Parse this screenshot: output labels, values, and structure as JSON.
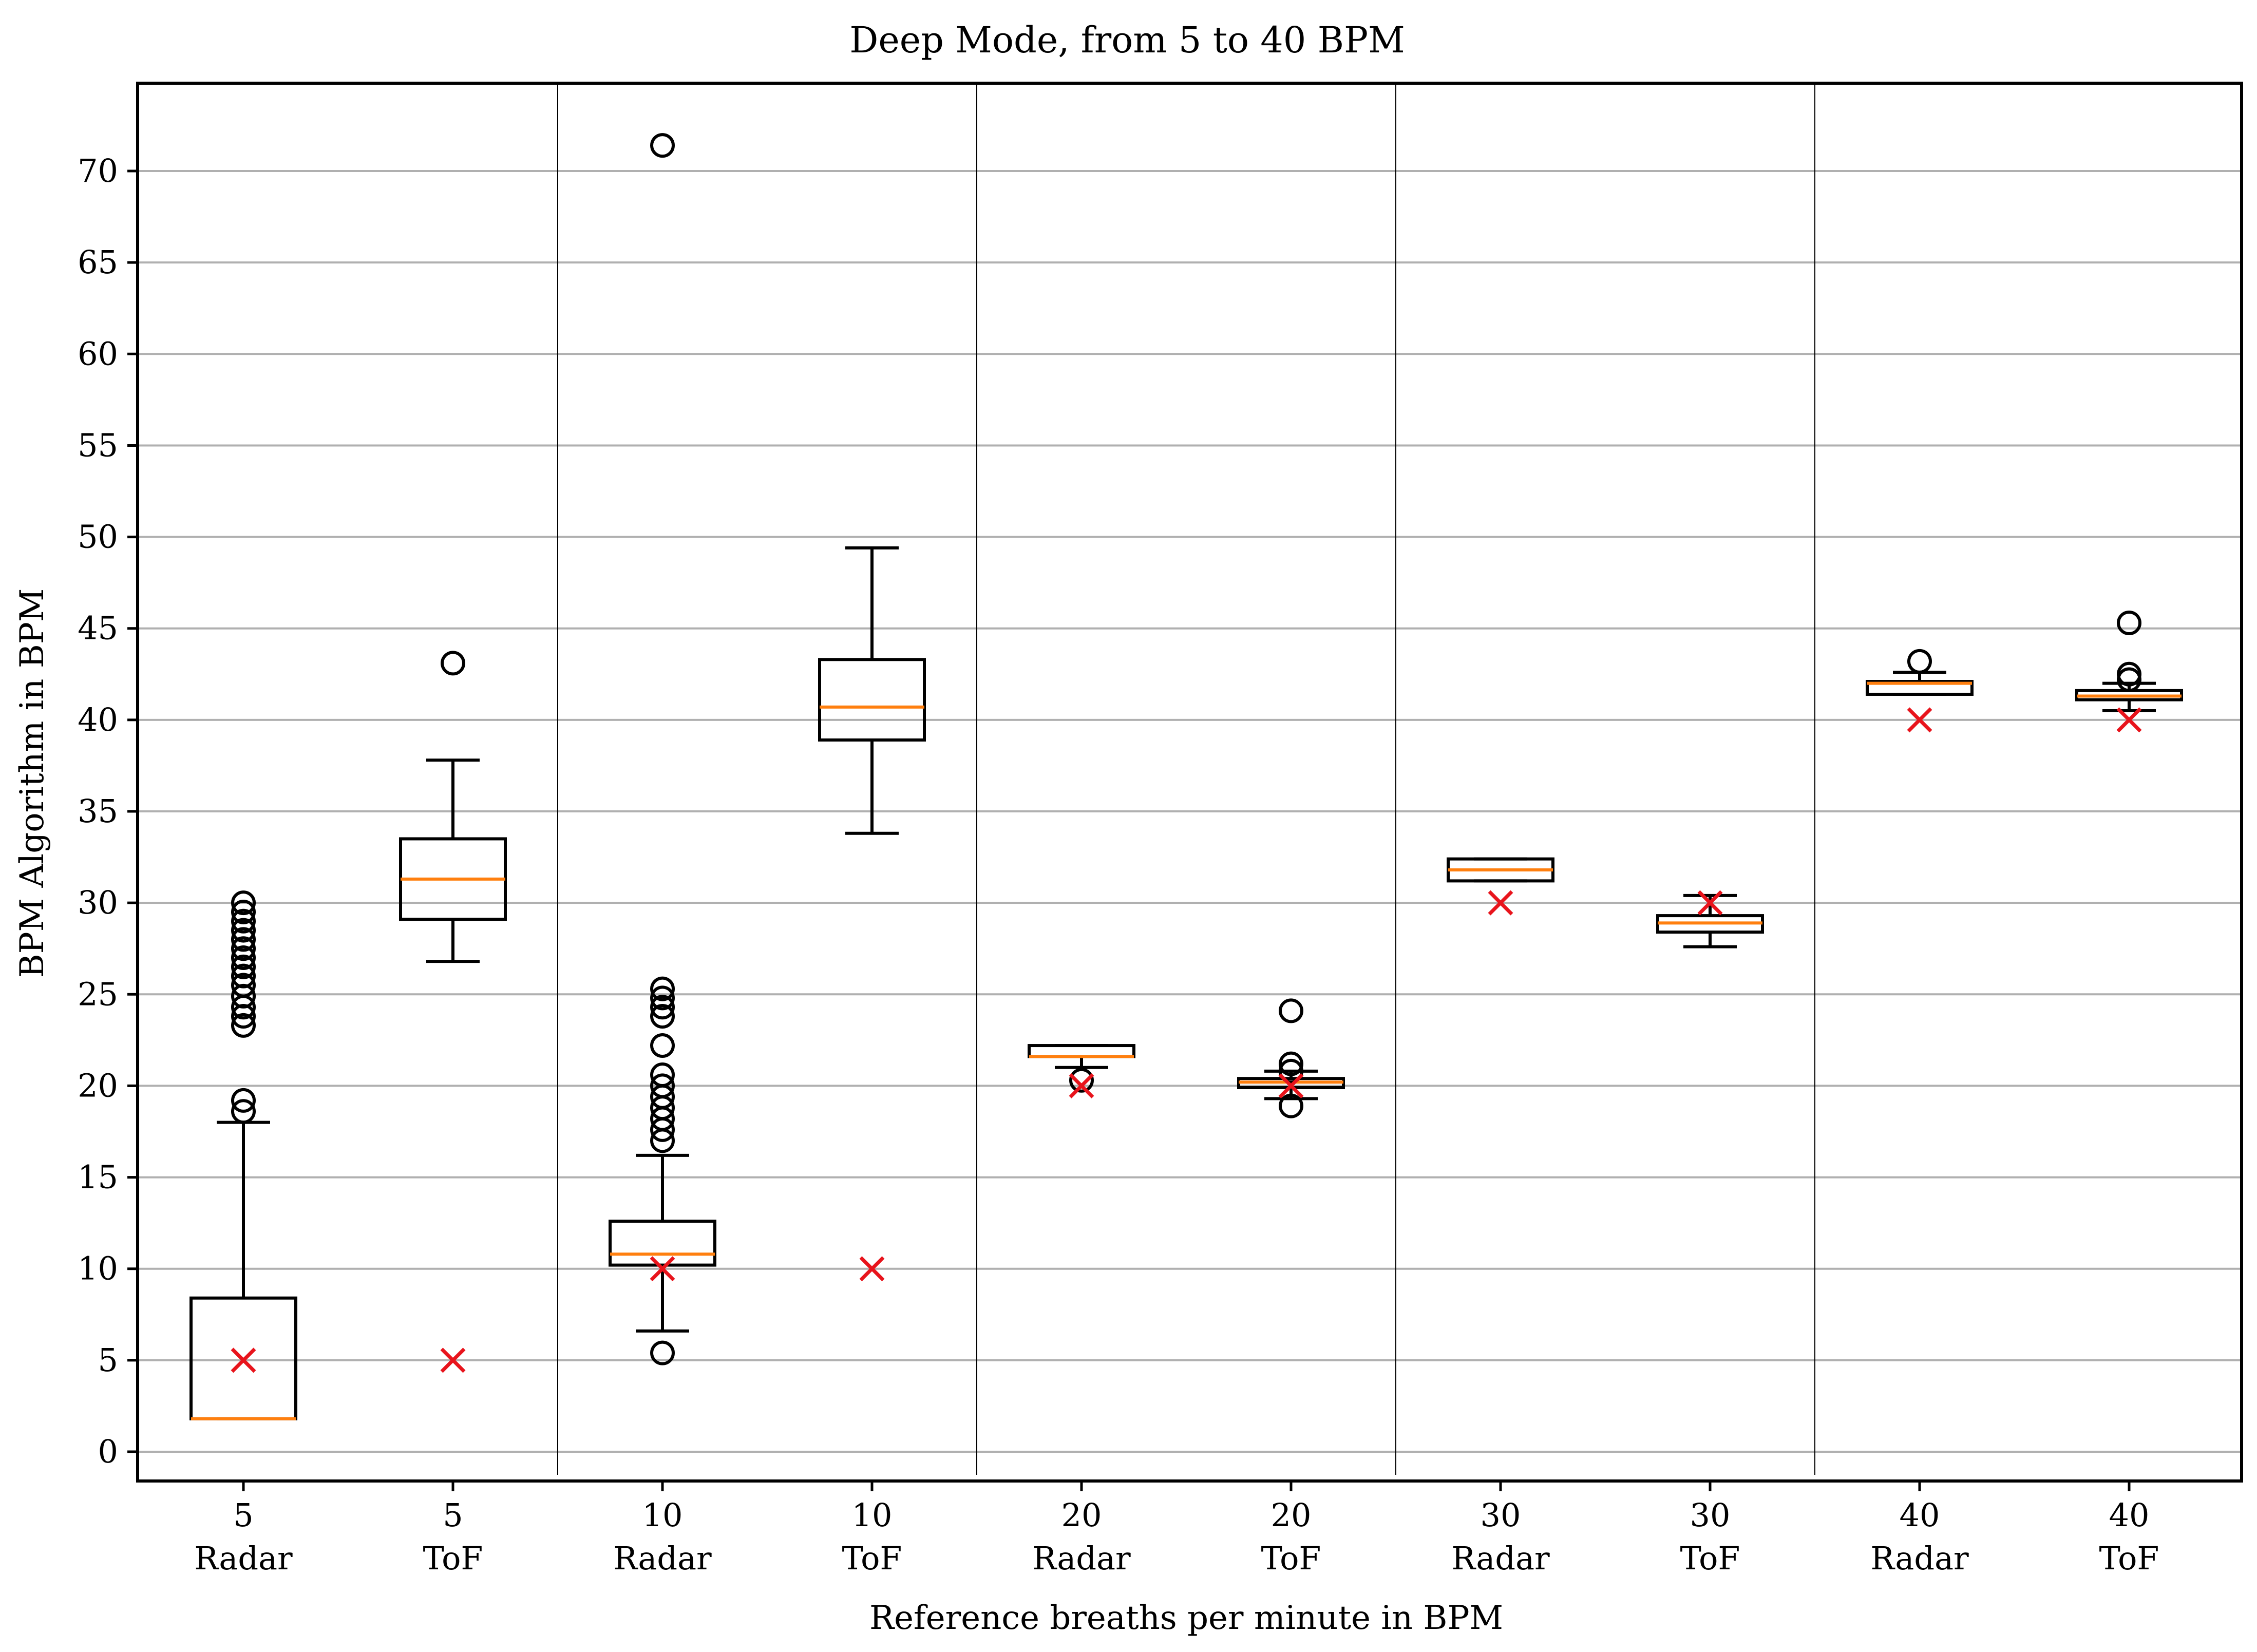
{
  "chart_data": {
    "type": "box",
    "title": "Deep Mode, from 5 to 40 BPM",
    "xlabel": "Reference breaths per minute in BPM",
    "ylabel": "BPM Algorithm in BPM",
    "ylim": [
      -1.6,
      74.8
    ],
    "yticks": [
      0,
      5,
      10,
      15,
      20,
      25,
      30,
      35,
      40,
      45,
      50,
      55,
      60,
      65,
      70
    ],
    "grid": "horizontal",
    "series": [
      {
        "ref": "5",
        "sensor": "Radar",
        "reference_bpm": 5,
        "whisker_low": 1.8,
        "q1": 1.8,
        "median": 1.8,
        "q3": 8.4,
        "whisker_high": 18.0,
        "outliers": [
          18.6,
          19.2,
          23.3,
          23.8,
          24.3,
          24.9,
          25.5,
          26.0,
          26.5,
          27.0,
          27.5,
          28.0,
          28.5,
          29.0,
          29.5,
          30.0
        ]
      },
      {
        "ref": "5",
        "sensor": "ToF",
        "reference_bpm": 5,
        "whisker_low": 26.8,
        "q1": 29.1,
        "median": 31.3,
        "q3": 33.5,
        "whisker_high": 37.8,
        "outliers": [
          43.1
        ]
      },
      {
        "ref": "10",
        "sensor": "Radar",
        "reference_bpm": 10,
        "whisker_low": 6.6,
        "q1": 10.2,
        "median": 10.8,
        "q3": 12.6,
        "whisker_high": 16.2,
        "outliers": [
          5.4,
          17.0,
          17.6,
          18.2,
          18.8,
          19.4,
          20.0,
          20.6,
          22.2,
          23.8,
          24.3,
          24.8,
          25.3,
          71.4
        ]
      },
      {
        "ref": "10",
        "sensor": "ToF",
        "reference_bpm": 10,
        "whisker_low": 33.8,
        "q1": 38.9,
        "median": 40.7,
        "q3": 43.3,
        "whisker_high": 49.4,
        "outliers": []
      },
      {
        "ref": "20",
        "sensor": "Radar",
        "reference_bpm": 20,
        "whisker_low": 21.0,
        "q1": 21.6,
        "median": 21.6,
        "q3": 22.2,
        "whisker_high": 22.2,
        "outliers": [
          20.3
        ]
      },
      {
        "ref": "20",
        "sensor": "ToF",
        "reference_bpm": 20,
        "whisker_low": 19.3,
        "q1": 19.9,
        "median": 20.2,
        "q3": 20.4,
        "whisker_high": 20.8,
        "outliers": [
          18.9,
          20.8,
          21.2,
          24.1
        ]
      },
      {
        "ref": "30",
        "sensor": "Radar",
        "reference_bpm": 30,
        "whisker_low": 31.2,
        "q1": 31.2,
        "median": 31.8,
        "q3": 32.4,
        "whisker_high": 32.4,
        "outliers": []
      },
      {
        "ref": "30",
        "sensor": "ToF",
        "reference_bpm": 30,
        "whisker_low": 27.6,
        "q1": 28.4,
        "median": 28.9,
        "q3": 29.3,
        "whisker_high": 30.4,
        "outliers": []
      },
      {
        "ref": "40",
        "sensor": "Radar",
        "reference_bpm": 40,
        "whisker_low": 41.4,
        "q1": 41.4,
        "median": 42.0,
        "q3": 42.1,
        "whisker_high": 42.6,
        "outliers": [
          43.2
        ]
      },
      {
        "ref": "40",
        "sensor": "ToF",
        "reference_bpm": 40,
        "whisker_low": 40.5,
        "q1": 41.1,
        "median": 41.3,
        "q3": 41.6,
        "whisker_high": 42.0,
        "outliers": [
          42.2,
          42.5,
          45.3
        ]
      }
    ],
    "colors": {
      "box": "#000000",
      "median": "#ff7f0e",
      "reference_marker": "#e8141c",
      "grid": "#b0b0b0"
    }
  }
}
